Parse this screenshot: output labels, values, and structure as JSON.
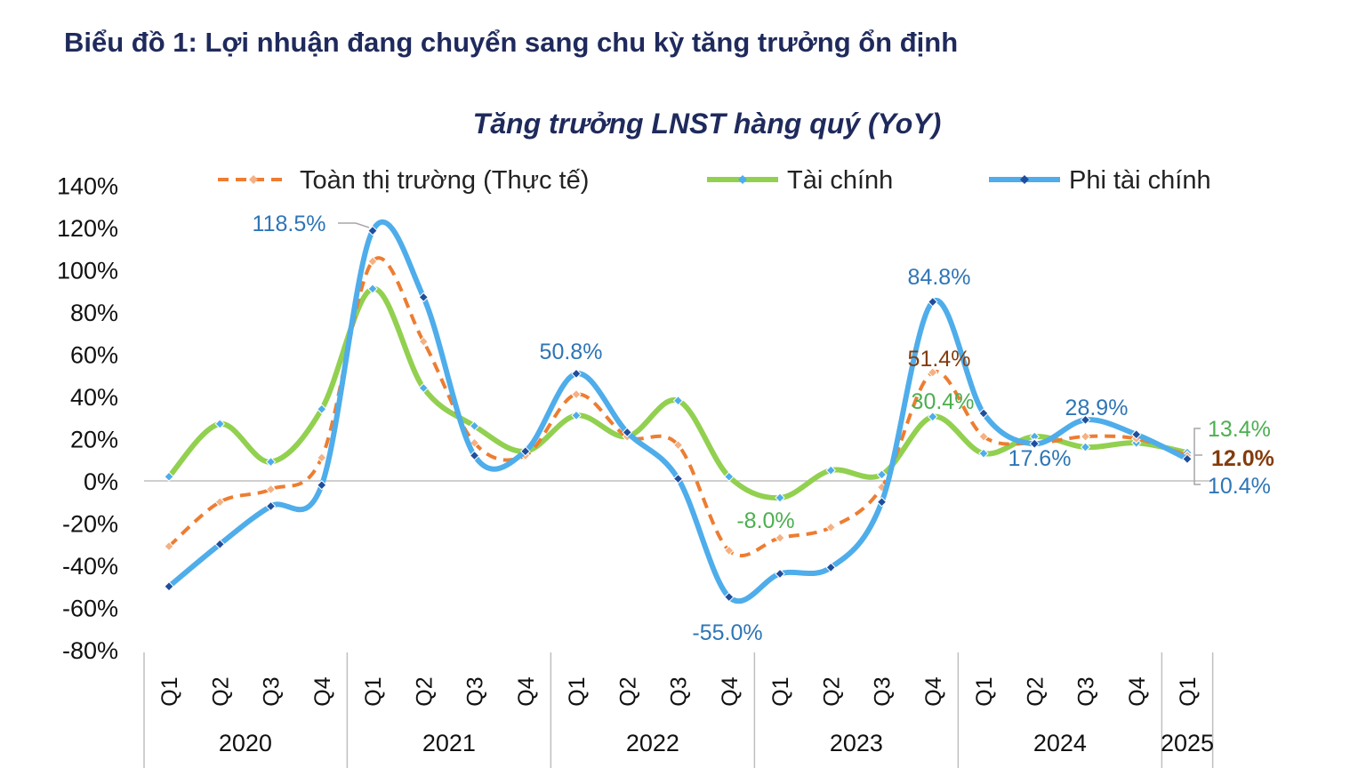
{
  "heading": "Biểu đồ 1: Lợi nhuận đang chuyển sang chu kỳ tăng trưởng ổn định",
  "chart_data": {
    "type": "line",
    "title": "Tăng trưởng LNST hàng quý (YoY)",
    "categories": [
      "Q1",
      "Q2",
      "Q3",
      "Q4",
      "Q1",
      "Q2",
      "Q3",
      "Q4",
      "Q1",
      "Q2",
      "Q3",
      "Q4",
      "Q1",
      "Q2",
      "Q3",
      "Q4",
      "Q1",
      "Q2",
      "Q3",
      "Q4",
      "Q1"
    ],
    "years": [
      {
        "label": "2020",
        "start": 0,
        "end": 3
      },
      {
        "label": "2021",
        "start": 4,
        "end": 7
      },
      {
        "label": "2022",
        "start": 8,
        "end": 11
      },
      {
        "label": "2023",
        "start": 12,
        "end": 15
      },
      {
        "label": "2024",
        "start": 16,
        "end": 19
      },
      {
        "label": "2025",
        "start": 20,
        "end": 20
      }
    ],
    "ylim": [
      -80,
      140
    ],
    "yticks": [
      "-80%",
      "-60%",
      "-40%",
      "-20%",
      "0%",
      "20%",
      "40%",
      "60%",
      "80%",
      "100%",
      "120%",
      "140%"
    ],
    "legend_position": "top",
    "series": [
      {
        "name": "Toàn thị trường (Thực tế)",
        "color": "#ed7d31",
        "dashed": true,
        "values": [
          -31,
          -10,
          -4,
          11,
          104,
          66,
          18,
          12,
          41,
          21,
          17,
          -33,
          -27,
          -22,
          -3,
          51.4,
          21,
          18,
          21,
          20,
          12.0
        ]
      },
      {
        "name": "Tài chính",
        "color": "#92d050",
        "dashed": false,
        "values": [
          2,
          27,
          9,
          34,
          91,
          44,
          26,
          14,
          31,
          21,
          38,
          2,
          -8.0,
          5,
          3,
          30.4,
          13,
          21,
          16,
          18,
          13.4
        ]
      },
      {
        "name": "Phi tài chính",
        "color": "#4eadea",
        "dashed": false,
        "values": [
          -50,
          -30,
          -12,
          -2,
          118.5,
          87,
          12,
          14,
          50.8,
          23,
          1,
          -55.0,
          -44,
          -41,
          -10,
          84.8,
          32,
          17.6,
          28.9,
          22,
          10.4
        ]
      }
    ],
    "annotations": [
      {
        "text": "118.5%",
        "series": 2,
        "index": 4,
        "color": "#2e75b6"
      },
      {
        "text": "50.8%",
        "series": 2,
        "index": 8,
        "color": "#2e75b6"
      },
      {
        "text": "-55.0%",
        "series": 2,
        "index": 11,
        "color": "#2e75b6"
      },
      {
        "text": "84.8%",
        "series": 2,
        "index": 15,
        "color": "#2e75b6"
      },
      {
        "text": "17.6%",
        "series": 2,
        "index": 17,
        "color": "#2e75b6"
      },
      {
        "text": "28.9%",
        "series": 2,
        "index": 18,
        "color": "#2e75b6"
      },
      {
        "text": "51.4%",
        "series": 0,
        "index": 15,
        "color": "#843c0c"
      },
      {
        "text": "30.4%",
        "series": 1,
        "index": 15,
        "color": "#4caf50"
      },
      {
        "text": "-8.0%",
        "series": 1,
        "index": 12,
        "color": "#4caf50"
      },
      {
        "text": "13.4%",
        "series": 1,
        "index": 20,
        "color": "#4caf50"
      },
      {
        "text": "12.0%",
        "series": 0,
        "index": 20,
        "color": "#843c0c",
        "bold": true
      },
      {
        "text": "10.4%",
        "series": 2,
        "index": 20,
        "color": "#2e75b6"
      }
    ]
  }
}
